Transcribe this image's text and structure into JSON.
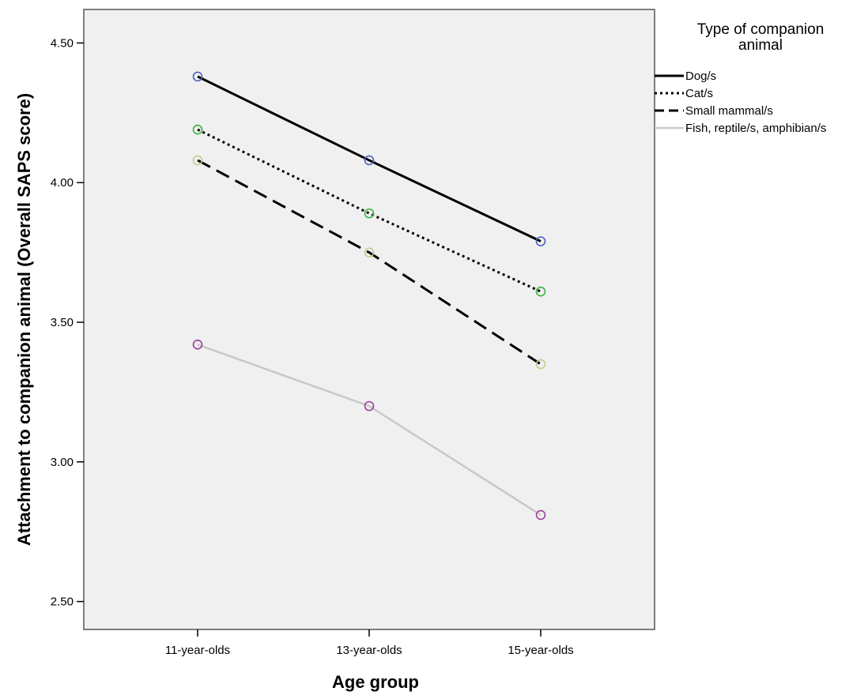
{
  "chart_data": {
    "type": "line",
    "title": "",
    "xlabel": "Age group",
    "ylabel": "Attachment to companion animal (Overall SAPS score)",
    "categories": [
      "11-year-olds",
      "13-year-olds",
      "15-year-olds"
    ],
    "ylim": [
      2.4,
      4.62
    ],
    "yticks": [
      "2.50",
      "3.00",
      "3.50",
      "4.00",
      "4.50"
    ],
    "grid": false,
    "plot_background": "#f0f0f0",
    "legend": {
      "title_lines": [
        "Type of companion",
        "animal"
      ],
      "placement": "right"
    },
    "series": [
      {
        "name": "Dog/s",
        "values": [
          4.38,
          4.08,
          3.79
        ],
        "line_color": "#000000",
        "line_style": "solid",
        "marker_color": "#4a5fc1"
      },
      {
        "name": "Cat/s",
        "values": [
          4.19,
          3.89,
          3.61
        ],
        "line_color": "#000000",
        "line_style": "dotted",
        "marker_color": "#3cb043"
      },
      {
        "name": "Small mammal/s",
        "values": [
          4.08,
          3.75,
          3.35
        ],
        "line_color": "#000000",
        "line_style": "dashed",
        "marker_color": "#c8c890"
      },
      {
        "name": "Fish, reptile/s, amphibian/s",
        "values": [
          3.42,
          3.2,
          2.81
        ],
        "line_color": "#c8c8c8",
        "line_style": "solid",
        "marker_color": "#9b3fa0"
      }
    ]
  }
}
